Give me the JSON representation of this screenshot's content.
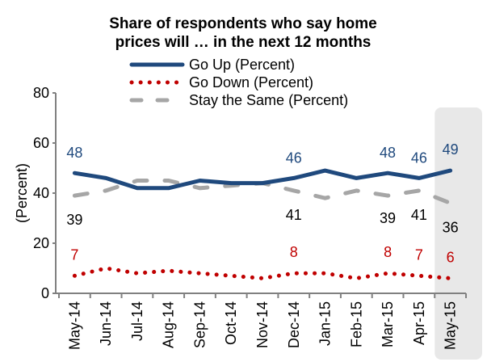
{
  "chart_data": {
    "type": "line",
    "title_lines": [
      "Share of respondents who say home",
      "prices will … in the next 12 months"
    ],
    "xlabel": "",
    "ylabel": "(Percent)",
    "ylim": [
      0,
      80
    ],
    "yticks": [
      0,
      20,
      40,
      60,
      80
    ],
    "grid": false,
    "legend_position": "top",
    "categories": [
      "May-14",
      "Jun-14",
      "Jul-14",
      "Aug-14",
      "Sep-14",
      "Oct-14",
      "Nov-14",
      "Dec-14",
      "Jan-15",
      "Feb-15",
      "Mar-15",
      "Apr-15",
      "May-15"
    ],
    "highlighted_category": "May-15",
    "series": [
      {
        "name": "Go Up (Percent)",
        "key": "go-up",
        "color": "#1f497d",
        "style": "solid",
        "values": [
          48,
          46,
          42,
          42,
          45,
          44,
          44,
          46,
          49,
          46,
          48,
          46,
          49
        ],
        "labels": [
          {
            "index": 0,
            "text": "48"
          },
          {
            "index": 7,
            "text": "46"
          },
          {
            "index": 10,
            "text": "48"
          },
          {
            "index": 11,
            "text": "46"
          },
          {
            "index": 12,
            "text": "49"
          }
        ]
      },
      {
        "name": "Go Down (Percent)",
        "key": "go-down",
        "color": "#c00000",
        "style": "dotted",
        "values": [
          7,
          10,
          8,
          9,
          8,
          7,
          6,
          8,
          8,
          6,
          8,
          7,
          6
        ],
        "labels": [
          {
            "index": 0,
            "text": "7"
          },
          {
            "index": 7,
            "text": "8"
          },
          {
            "index": 10,
            "text": "8"
          },
          {
            "index": 11,
            "text": "7"
          },
          {
            "index": 12,
            "text": "6"
          }
        ]
      },
      {
        "name": "Stay the Same (Percent)",
        "key": "stay-same",
        "color": "#a6a6a6",
        "style": "dashed",
        "values": [
          39,
          41,
          45,
          45,
          42,
          43,
          44,
          41,
          38,
          41,
          39,
          41,
          36
        ],
        "labels": [
          {
            "index": 0,
            "text": "39"
          },
          {
            "index": 7,
            "text": "41"
          },
          {
            "index": 10,
            "text": "39"
          },
          {
            "index": 11,
            "text": "41"
          },
          {
            "index": 12,
            "text": "36"
          }
        ]
      }
    ],
    "colors": {
      "axis": "#808080",
      "highlight_band": "#e8e8e8",
      "label_go_up": "#1f497d",
      "label_go_down": "#c00000",
      "label_stay_same": "#000000"
    }
  }
}
